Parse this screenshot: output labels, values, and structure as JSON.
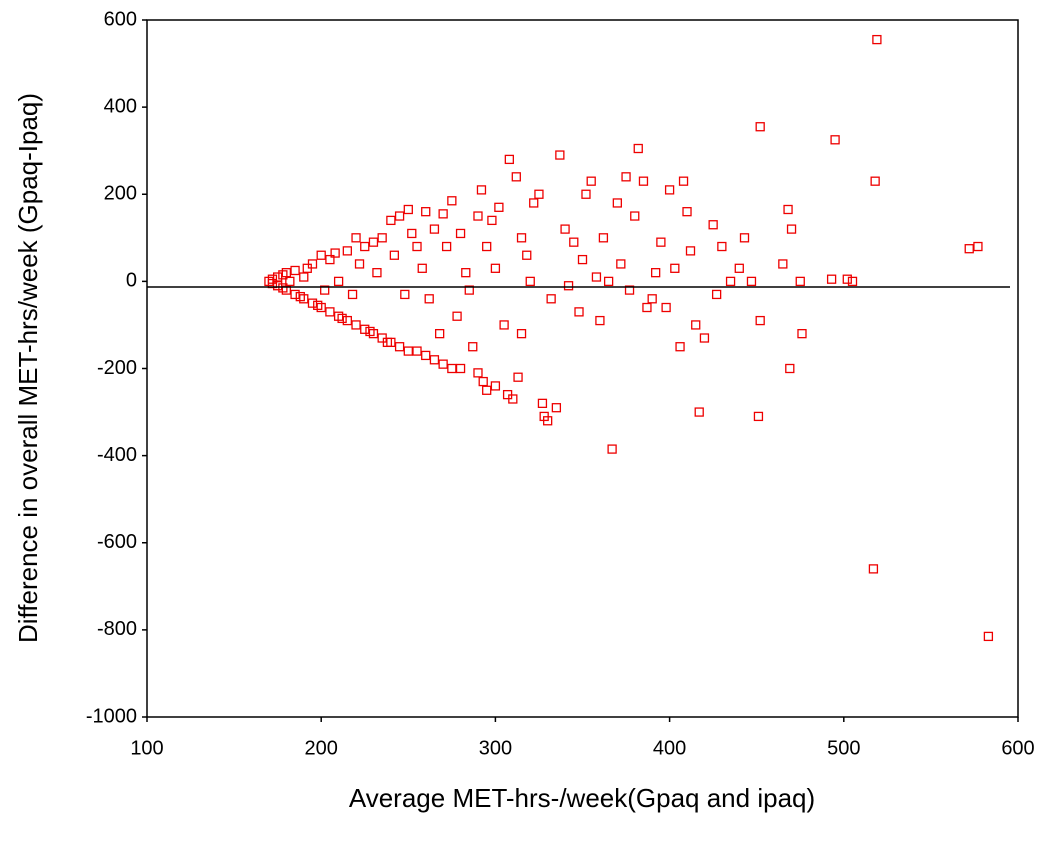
{
  "chart_data": {
    "type": "scatter",
    "xlabel": "Average MET-hrs-/week(Gpaq and ipaq)",
    "ylabel": "Difference in overall MET-hrs/week (Gpaq-Ipaq)",
    "xlim": [
      100,
      600
    ],
    "ylim": [
      -1000,
      600
    ],
    "xticks": [
      100,
      200,
      300,
      400,
      500,
      600
    ],
    "yticks": [
      600,
      400,
      200,
      0,
      -200,
      -400,
      -600,
      -800,
      -1000
    ],
    "hline": -13,
    "series": [
      {
        "color": "#ee0000",
        "x": [
          170,
          172,
          172,
          175,
          175,
          178,
          178,
          180,
          180,
          182,
          185,
          185,
          188,
          190,
          190,
          192,
          195,
          195,
          198,
          200,
          200,
          202,
          205,
          205,
          208,
          210,
          210,
          212,
          215,
          215,
          218,
          220,
          220,
          222,
          225,
          225,
          228,
          230,
          230,
          232,
          235,
          235,
          238,
          240,
          240,
          242,
          245,
          245,
          248,
          250,
          250,
          252,
          255,
          255,
          258,
          260,
          260,
          262,
          265,
          265,
          268,
          270,
          270,
          272,
          275,
          275,
          278,
          280,
          280,
          283,
          285,
          287,
          290,
          290,
          292,
          293,
          295,
          295,
          298,
          300,
          300,
          302,
          305,
          307,
          308,
          310,
          312,
          313,
          315,
          315,
          318,
          320,
          322,
          325,
          327,
          328,
          330,
          332,
          335,
          337,
          340,
          342,
          345,
          348,
          350,
          352,
          355,
          358,
          360,
          362,
          365,
          367,
          370,
          372,
          375,
          377,
          380,
          382,
          385,
          387,
          390,
          392,
          395,
          398,
          400,
          403,
          406,
          408,
          410,
          412,
          415,
          417,
          420,
          425,
          427,
          430,
          435,
          440,
          443,
          447,
          452,
          451,
          452,
          465,
          468,
          469,
          470,
          475,
          476,
          493,
          495,
          502,
          505,
          517,
          518,
          519,
          572,
          577,
          583
        ],
        "values": [
          0,
          5,
          -5,
          10,
          -10,
          15,
          -15,
          20,
          -20,
          0,
          25,
          -30,
          -35,
          10,
          -40,
          30,
          -50,
          40,
          -55,
          60,
          -60,
          -20,
          -70,
          50,
          65,
          -80,
          0,
          -85,
          70,
          -90,
          -30,
          100,
          -100,
          40,
          -110,
          80,
          -115,
          90,
          -120,
          20,
          -130,
          100,
          -140,
          140,
          -140,
          60,
          150,
          -150,
          -30,
          165,
          -160,
          110,
          -160,
          80,
          30,
          160,
          -170,
          -40,
          120,
          -180,
          -120,
          155,
          -190,
          80,
          185,
          -200,
          -80,
          110,
          -200,
          20,
          -20,
          -150,
          150,
          -210,
          210,
          -230,
          -250,
          80,
          140,
          -240,
          30,
          170,
          -100,
          -260,
          280,
          -270,
          240,
          -220,
          -120,
          100,
          60,
          0,
          180,
          200,
          -280,
          -310,
          -320,
          -40,
          -290,
          290,
          120,
          -10,
          90,
          -70,
          50,
          200,
          230,
          10,
          -90,
          100,
          0,
          -385,
          180,
          40,
          240,
          -20,
          150,
          305,
          230,
          -60,
          -40,
          20,
          90,
          -60,
          210,
          30,
          -150,
          230,
          160,
          70,
          -100,
          -300,
          -130,
          130,
          -30,
          80,
          0,
          30,
          100,
          0,
          355,
          -310,
          -90,
          40,
          165,
          -200,
          120,
          0,
          -120,
          5,
          325,
          5,
          0,
          -660,
          230,
          555,
          75,
          80,
          -815
        ]
      }
    ]
  }
}
